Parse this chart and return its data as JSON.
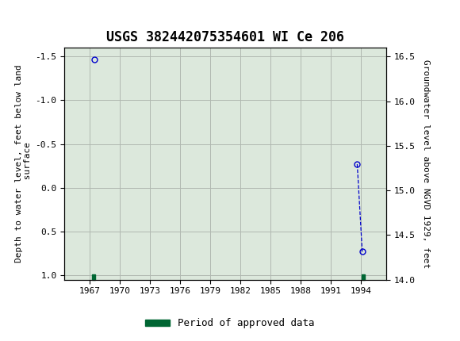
{
  "title": "USGS 382442075354601 WI Ce 206",
  "ylabel_left": "Depth to water level, feet below land\n surface",
  "ylabel_right": "Groundwater level above NGVD 1929, feet",
  "ylim_left": [
    1.05,
    -1.6
  ],
  "ylim_right": [
    14.0,
    16.6
  ],
  "xlim": [
    1964.5,
    1996.5
  ],
  "xtick_positions": [
    1967,
    1970,
    1973,
    1976,
    1979,
    1982,
    1985,
    1988,
    1991,
    1994
  ],
  "ytick_left": [
    -1.5,
    -1.0,
    -0.5,
    0.0,
    0.5,
    1.0
  ],
  "ytick_right": [
    14.0,
    14.5,
    15.0,
    15.5,
    16.0,
    16.5
  ],
  "scatter_x": [
    1967.5,
    1993.6,
    1994.1
  ],
  "scatter_y": [
    -1.47,
    -0.27,
    0.73
  ],
  "point_color": "#0000cc",
  "approved_color": "#006633",
  "background_color": "#dce8dc",
  "header_color": "#006633",
  "grid_color": "#b0b8b0",
  "title_fontsize": 12,
  "axis_label_fontsize": 8,
  "tick_fontsize": 8,
  "legend_fontsize": 9,
  "dashed_line_x": [
    1993.6,
    1994.1
  ],
  "dashed_line_y": [
    -0.27,
    0.73
  ],
  "approved_bar1_x": 1967.4,
  "approved_bar2_x": 1994.2,
  "approved_bar_width": 0.35,
  "approved_bar_y": 0.99,
  "approved_bar_height": 0.06
}
